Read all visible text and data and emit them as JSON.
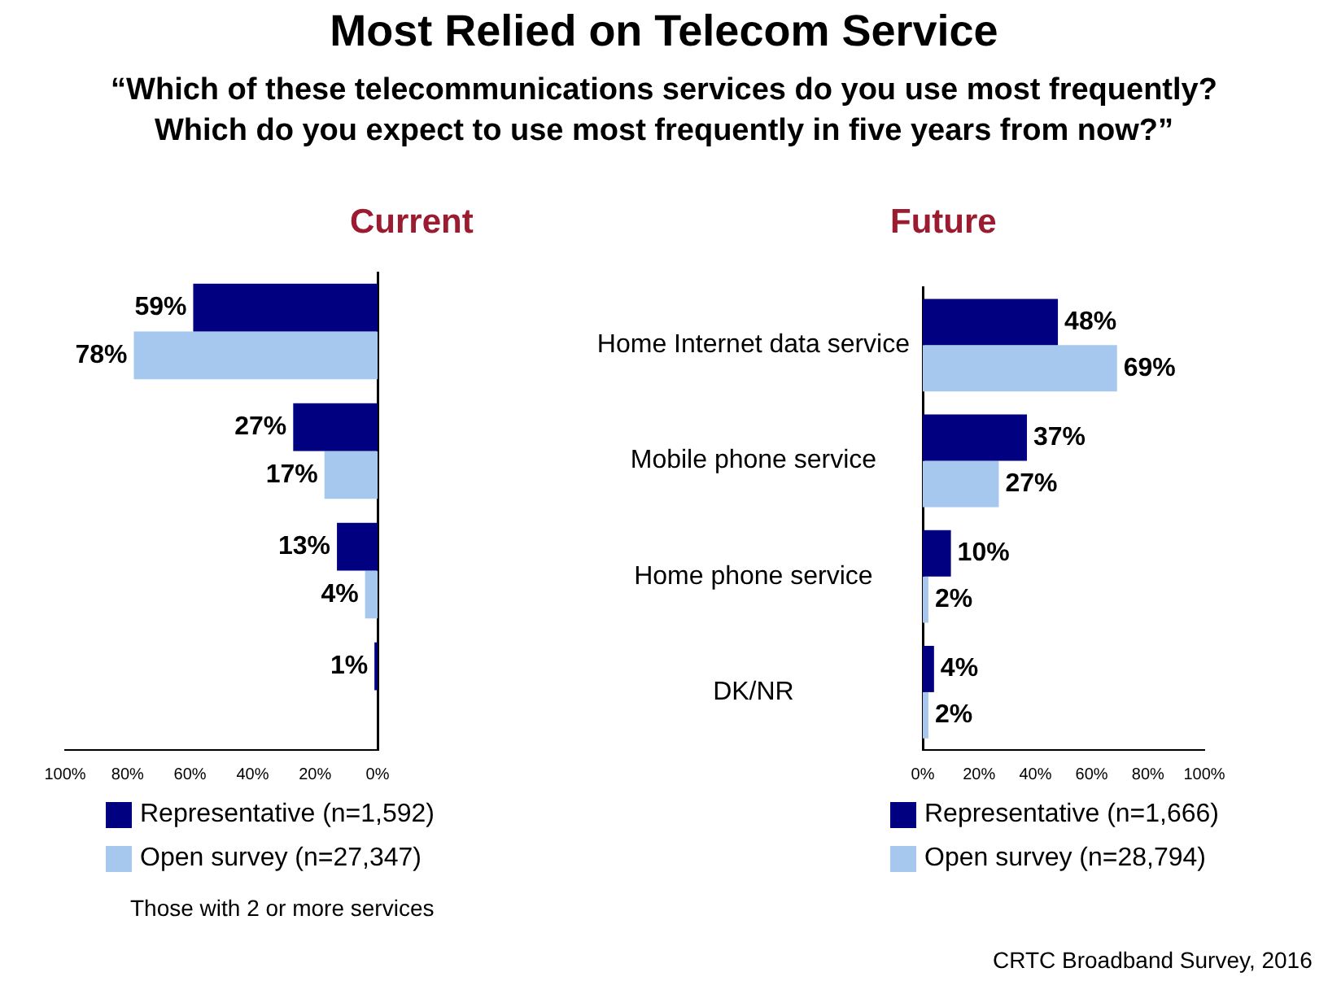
{
  "chart_data": [
    {
      "type": "other",
      "title": "Most Relied on Telecom Service",
      "subtitle": "“Which of these telecommunications services do you use most frequently?\nWhich do you expect to use most frequently in five years from now?”"
    },
    {
      "type": "bar",
      "orientation": "horizontal",
      "title": "Current",
      "categories": [
        null,
        null,
        null,
        null
      ],
      "series": [
        {
          "name": "Representative (n=1,592)",
          "color": "#000080",
          "values": [
            59,
            27,
            13,
            1
          ],
          "value_labels": [
            "59%",
            "27%",
            "13%",
            "1%"
          ]
        },
        {
          "name": "Open survey (n=27,347)",
          "color": "#a6c8ef",
          "values": [
            78,
            17,
            4,
            null
          ],
          "value_labels": [
            "78%",
            "17%",
            "4%",
            null
          ]
        }
      ],
      "xlim": [
        100,
        0
      ],
      "xticks": [
        {
          "value": 100,
          "label": "100%"
        },
        {
          "value": 80,
          "label": "80%"
        },
        {
          "value": 60,
          "label": "60%"
        },
        {
          "value": 40,
          "label": "40%"
        },
        {
          "value": 20,
          "label": "20%"
        },
        {
          "value": 0,
          "label": "0%"
        }
      ],
      "tick_labels": "x",
      "grid": false,
      "legend": "bottom",
      "annotations": [
        "Those with 2 or more services"
      ]
    },
    {
      "type": "bar",
      "orientation": "horizontal",
      "title": "Future",
      "categories": [
        "Home Internet data service",
        "Mobile phone service",
        "Home phone service",
        "DK/NR"
      ],
      "series": [
        {
          "name": "Representative (n=1,666)",
          "color": "#000080",
          "values": [
            48,
            37,
            10,
            4
          ],
          "value_labels": [
            "48%",
            "37%",
            "10%",
            "4%"
          ]
        },
        {
          "name": "Open survey (n=28,794)",
          "color": "#a6c8ef",
          "values": [
            69,
            27,
            2,
            2
          ],
          "value_labels": [
            "69%",
            "27%",
            "2%",
            "2%"
          ]
        }
      ],
      "xlim": [
        0,
        100
      ],
      "xticks": [
        {
          "value": 0,
          "label": "0%"
        },
        {
          "value": 20,
          "label": "20%"
        },
        {
          "value": 40,
          "label": "40%"
        },
        {
          "value": 60,
          "label": "60%"
        },
        {
          "value": 80,
          "label": "80%"
        },
        {
          "value": 100,
          "label": "100%"
        }
      ],
      "grid": false,
      "legend": "bottom",
      "annotations": [
        "CRTC Broadband Survey, 2016"
      ]
    }
  ]
}
